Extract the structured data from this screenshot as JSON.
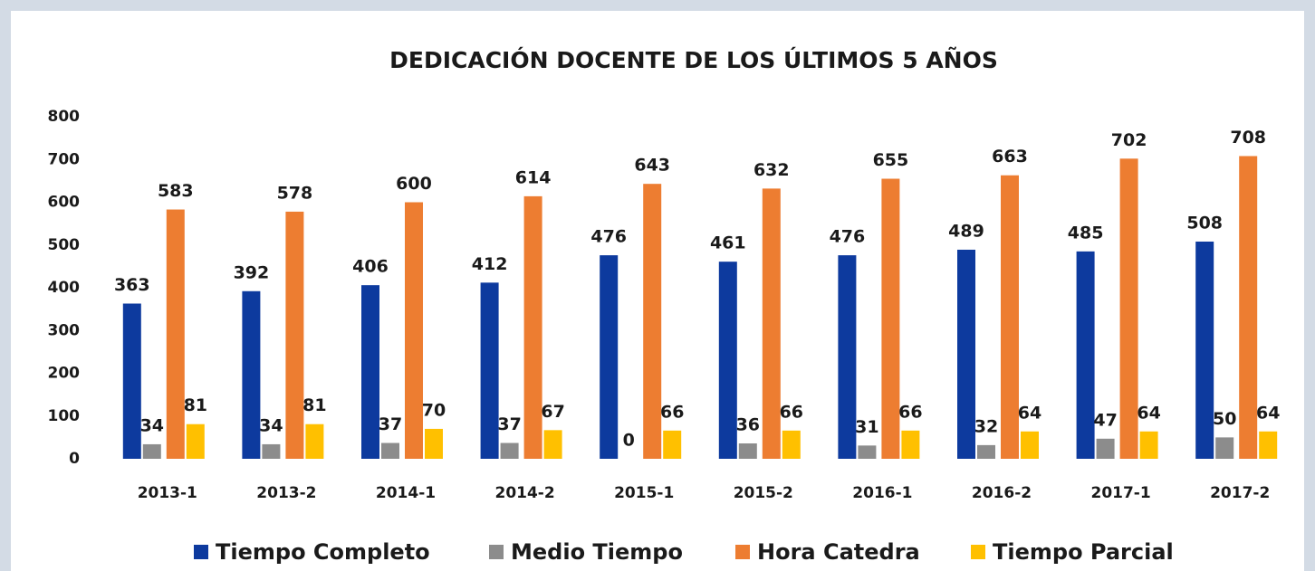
{
  "chart_data": {
    "type": "bar",
    "title": "DEDICACIÓN DOCENTE DE LOS ÚLTIMOS 5 AÑOS",
    "categories": [
      "2013-1",
      "2013-2",
      "2014-1",
      "2014-2",
      "2015-1",
      "2015-2",
      "2016-1",
      "2016-2",
      "2017-1",
      "2017-2"
    ],
    "series": [
      {
        "name": "Tiempo Completo",
        "color": "#0d3a9e",
        "values": [
          363,
          392,
          406,
          412,
          476,
          461,
          476,
          489,
          485,
          508
        ]
      },
      {
        "name": "Medio Tiempo",
        "color": "#8c8c8c",
        "values": [
          34,
          34,
          37,
          37,
          0,
          36,
          31,
          32,
          47,
          50
        ]
      },
      {
        "name": "Hora Catedra",
        "color": "#ed7d31",
        "values": [
          583,
          578,
          600,
          614,
          643,
          632,
          655,
          663,
          702,
          708
        ]
      },
      {
        "name": "Tiempo Parcial",
        "color": "#ffc000",
        "values": [
          81,
          81,
          70,
          67,
          66,
          66,
          66,
          64,
          64,
          64
        ]
      }
    ],
    "ylim": [
      0,
      800
    ],
    "yticks": [
      0,
      100,
      200,
      300,
      400,
      500,
      600,
      700,
      800
    ],
    "grid": false,
    "legend": "bottom"
  }
}
